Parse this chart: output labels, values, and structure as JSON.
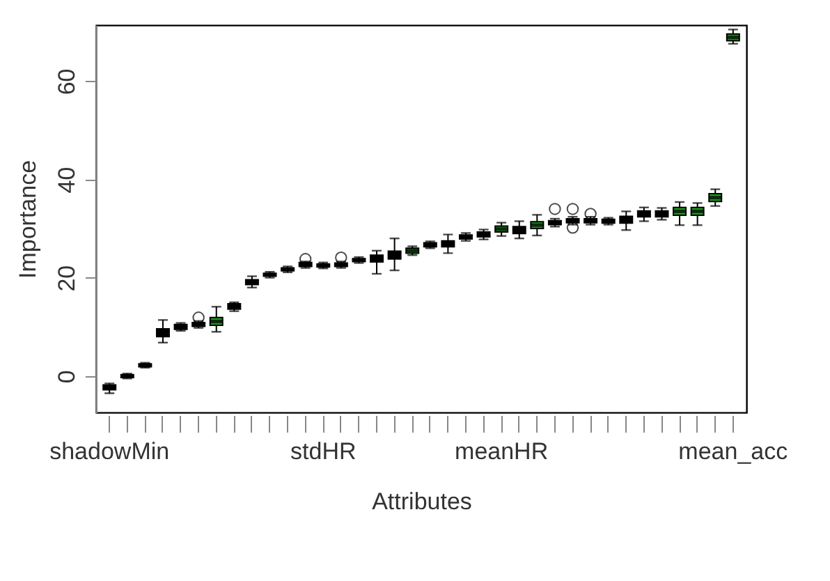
{
  "chart_data": {
    "type": "box",
    "xlabel": "Attributes",
    "ylabel": "Importance",
    "categories": [
      "shadowMin",
      null,
      null,
      null,
      null,
      null,
      null,
      null,
      null,
      null,
      null,
      null,
      "stdHR",
      null,
      null,
      null,
      null,
      null,
      null,
      null,
      null,
      null,
      "meanHR",
      null,
      null,
      null,
      null,
      null,
      null,
      null,
      null,
      null,
      null,
      null,
      null,
      "mean_acc"
    ],
    "colors": [
      "#000000",
      "#000000",
      "#000000",
      "#000000",
      "#000000",
      "#000000",
      "#1f9c1f",
      "#000000",
      "#000000",
      "#000000",
      "#000000",
      "#000000",
      "#000000",
      "#000000",
      "#000000",
      "#000000",
      "#000000",
      "#1f9c1f",
      "#000000",
      "#000000",
      "#000000",
      "#000000",
      "#1f9c1f",
      "#000000",
      "#1f9c1f",
      "#000000",
      "#000000",
      "#000000",
      "#000000",
      "#000000",
      "#000000",
      "#000000",
      "#1f9c1f",
      "#1f9c1f",
      "#1f9c1f",
      "#1f9c1f"
    ],
    "boxes": [
      {
        "low": -3.5,
        "q1": -2.8,
        "median": -2.3,
        "q3": -1.8,
        "high": -1.5
      },
      {
        "low": -0.5,
        "q1": -0.3,
        "median": 0,
        "q3": 0.3,
        "high": 0.5
      },
      {
        "low": 1.7,
        "q1": 1.9,
        "median": 2.2,
        "q3": 2.5,
        "high": 2.7
      },
      {
        "low": 6.8,
        "q1": 8,
        "median": 8.8,
        "q3": 9.6,
        "high": 11.4
      },
      {
        "low": 9.2,
        "q1": 9.5,
        "median": 10,
        "q3": 10.5,
        "high": 10.8
      },
      {
        "low": 9.8,
        "q1": 10.1,
        "median": 10.5,
        "q3": 10.9,
        "high": 11.2,
        "outliers": [
          11.9
        ]
      },
      {
        "low": 9,
        "q1": 10.3,
        "median": 11.1,
        "q3": 11.9,
        "high": 14.1
      },
      {
        "low": 13.2,
        "q1": 13.6,
        "median": 14.2,
        "q3": 14.7,
        "high": 15
      },
      {
        "low": 18,
        "q1": 18.6,
        "median": 19.1,
        "q3": 19.6,
        "high": 20.3
      },
      {
        "low": 20,
        "q1": 20.3,
        "median": 20.6,
        "q3": 20.9,
        "high": 21.2
      },
      {
        "low": 21.1,
        "q1": 21.4,
        "median": 21.7,
        "q3": 22,
        "high": 22.3
      },
      {
        "low": 22,
        "q1": 22.3,
        "median": 22.7,
        "q3": 23.1,
        "high": 23.3,
        "outliers": [
          23.8
        ]
      },
      {
        "low": 21.9,
        "q1": 22.2,
        "median": 22.5,
        "q3": 22.8,
        "high": 23.1
      },
      {
        "low": 22,
        "q1": 22.3,
        "median": 22.7,
        "q3": 23,
        "high": 23.3,
        "outliers": [
          24.1
        ]
      },
      {
        "low": 23,
        "q1": 23.3,
        "median": 23.6,
        "q3": 23.9,
        "high": 24.2
      },
      {
        "low": 20.8,
        "q1": 23.2,
        "median": 23.9,
        "q3": 24.6,
        "high": 25.5
      },
      {
        "low": 21.5,
        "q1": 23.8,
        "median": 24.6,
        "q3": 25.4,
        "high": 28
      },
      {
        "low": 24.6,
        "q1": 25,
        "median": 25.5,
        "q3": 26,
        "high": 26.4
      },
      {
        "low": 26,
        "q1": 26.3,
        "median": 26.7,
        "q3": 27.1,
        "high": 27.4
      },
      {
        "low": 25,
        "q1": 26.3,
        "median": 26.9,
        "q3": 27.5,
        "high": 28.8
      },
      {
        "low": 27.5,
        "q1": 27.9,
        "median": 28.3,
        "q3": 28.7,
        "high": 29.1
      },
      {
        "low": 27.8,
        "q1": 28.3,
        "median": 28.8,
        "q3": 29.3,
        "high": 29.8
      },
      {
        "low": 28.5,
        "q1": 29.3,
        "median": 29.9,
        "q3": 30.5,
        "high": 31.2
      },
      {
        "low": 28,
        "q1": 29,
        "median": 29.7,
        "q3": 30.4,
        "high": 31.5
      },
      {
        "low": 28.6,
        "q1": 30,
        "median": 30.7,
        "q3": 31.4,
        "high": 32.8
      },
      {
        "low": 30.4,
        "q1": 30.8,
        "median": 31.2,
        "q3": 31.6,
        "high": 32,
        "outliers": [
          34
        ]
      },
      {
        "low": 30.8,
        "q1": 31.2,
        "median": 31.6,
        "q3": 32,
        "high": 32.4,
        "outliers": [
          34,
          30.2
        ]
      },
      {
        "low": 30.8,
        "q1": 31.2,
        "median": 31.6,
        "q3": 32,
        "high": 32.4,
        "outliers": [
          33
        ]
      },
      {
        "low": 30.8,
        "q1": 31.1,
        "median": 31.5,
        "q3": 31.9,
        "high": 32.2
      },
      {
        "low": 29.7,
        "q1": 31.1,
        "median": 31.8,
        "q3": 32.5,
        "high": 33.5
      },
      {
        "low": 31.5,
        "q1": 32.4,
        "median": 33,
        "q3": 33.6,
        "high": 34.3
      },
      {
        "low": 31.8,
        "q1": 32.4,
        "median": 33,
        "q3": 33.6,
        "high": 34.2
      },
      {
        "low": 30.7,
        "q1": 32.7,
        "median": 33.5,
        "q3": 34.3,
        "high": 35.4
      },
      {
        "low": 30.7,
        "q1": 32.7,
        "median": 33.5,
        "q3": 34.3,
        "high": 35.2
      },
      {
        "low": 34.6,
        "q1": 35.5,
        "median": 36.3,
        "q3": 37.1,
        "high": 38
      },
      {
        "low": 67.6,
        "q1": 68.2,
        "median": 68.9,
        "q3": 69.6,
        "high": 70.5
      }
    ],
    "ylim": [
      -7.4,
      71.4
    ],
    "yticks": [
      0,
      20,
      40,
      60
    ]
  }
}
